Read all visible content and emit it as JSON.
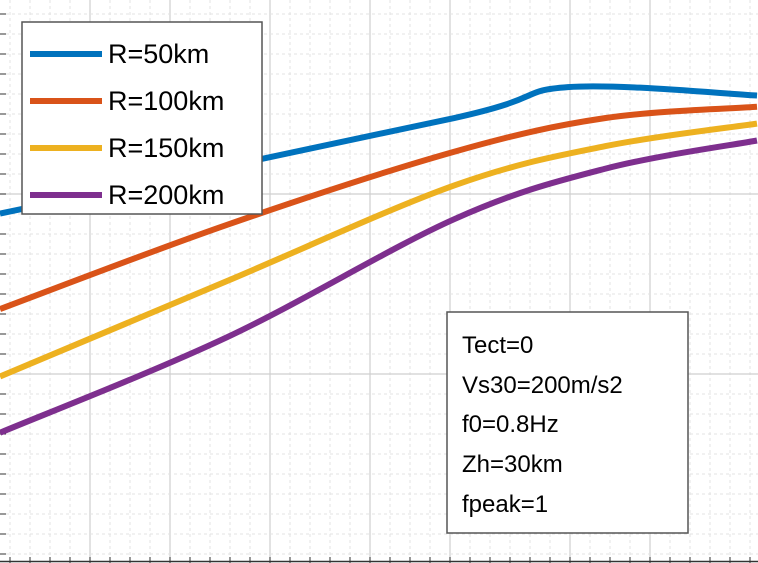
{
  "chart_data": {
    "type": "line",
    "title": "",
    "xlabel": "",
    "ylabel": "",
    "grid": true,
    "legend_position": "top-left",
    "series": [
      {
        "name": "R=50km",
        "color": "#0072BD",
        "x": [
          0,
          0.6,
          0.75,
          1.0
        ],
        "y": [
          0.62,
          0.79,
          0.845,
          0.83
        ]
      },
      {
        "name": "R=100km",
        "color": "#D95319",
        "x": [
          0,
          0.3,
          0.6,
          0.8,
          1.0
        ],
        "y": [
          0.45,
          0.6,
          0.73,
          0.79,
          0.81
        ]
      },
      {
        "name": "R=150km",
        "color": "#EDB120",
        "x": [
          0,
          0.3,
          0.6,
          0.8,
          1.0
        ],
        "y": [
          0.33,
          0.5,
          0.67,
          0.74,
          0.78
        ]
      },
      {
        "name": "R=200km",
        "color": "#7E2F8E",
        "x": [
          0,
          0.3,
          0.6,
          0.8,
          1.0
        ],
        "y": [
          0.23,
          0.4,
          0.61,
          0.7,
          0.75
        ]
      }
    ],
    "annotation": [
      "Tect=0",
      "Vs30=200m/s2",
      "f0=0.8Hz",
      "Zh=30km",
      "fpeak=1"
    ]
  }
}
